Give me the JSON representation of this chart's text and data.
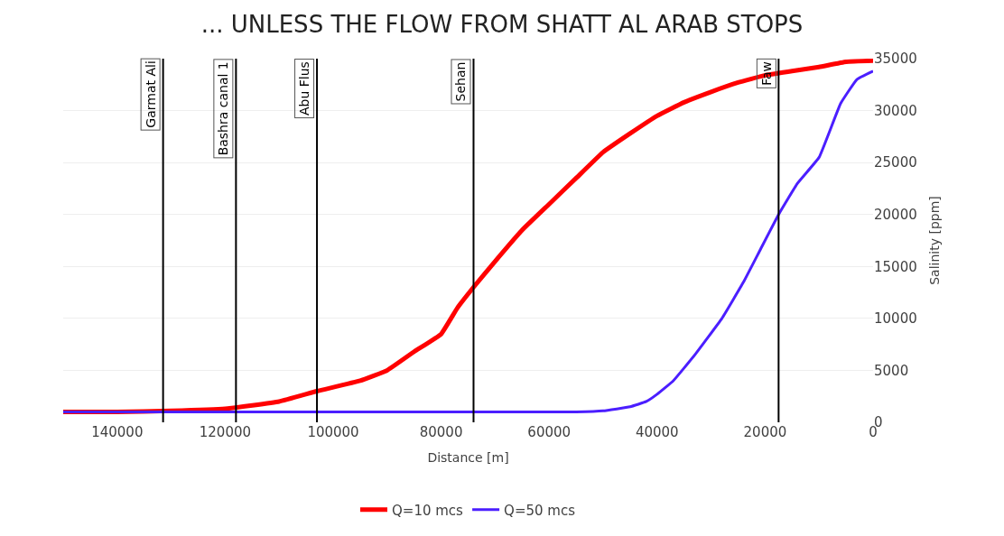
{
  "chart_data": {
    "type": "line",
    "title": "... UNLESS THE FLOW FROM SHATT AL ARAB STOPS",
    "xlabel": "Distance [m]",
    "ylabel": "Salinity [ppm]",
    "xlim": [
      150000,
      0
    ],
    "xticks": [
      140000,
      120000,
      100000,
      80000,
      60000,
      40000,
      20000,
      0
    ],
    "ylim": [
      0,
      35000
    ],
    "yticks": [
      0,
      5000,
      10000,
      15000,
      20000,
      25000,
      30000,
      35000
    ],
    "grid": "y",
    "legend": "bottom",
    "marker": "none",
    "line_style": "solid",
    "series": [
      {
        "name": "Q=10 mcs",
        "color": "#ff0000",
        "x": [
          150000,
          140000,
          130000,
          120000,
          110000,
          103000,
          95000,
          90000,
          85000,
          80000,
          77000,
          74000,
          70000,
          65000,
          60000,
          55000,
          50000,
          45000,
          40000,
          35000,
          30000,
          25000,
          20000,
          15000,
          10000,
          5000,
          0
        ],
        "values": [
          1000,
          1000,
          1100,
          1300,
          2000,
          3000,
          4000,
          5000,
          6800,
          8500,
          11000,
          13000,
          15500,
          18500,
          21000,
          23500,
          26000,
          27800,
          29500,
          30800,
          31800,
          32700,
          33400,
          33800,
          34200,
          34700,
          34800
        ]
      },
      {
        "name": "Q=50 mcs",
        "color": "#4b1eff",
        "x": [
          150000,
          100000,
          60000,
          55000,
          50000,
          45000,
          42000,
          40000,
          37000,
          33000,
          28000,
          24000,
          21000,
          17500,
          14000,
          10000,
          6000,
          3000,
          0
        ],
        "values": [
          1000,
          1000,
          1000,
          1000,
          1100,
          1500,
          2000,
          2700,
          4000,
          6500,
          10000,
          13500,
          16500,
          20000,
          23000,
          25500,
          30700,
          33000,
          33800
        ]
      }
    ],
    "ref_lines": [
      {
        "axis": "x",
        "value": 131500,
        "label": "Garmat Ali",
        "color": "#000000"
      },
      {
        "axis": "x",
        "value": 118000,
        "label": "Bashra canal 1",
        "color": "#000000"
      },
      {
        "axis": "x",
        "value": 103000,
        "label": "Abu Flus",
        "color": "#000000"
      },
      {
        "axis": "x",
        "value": 74000,
        "label": "Sehan",
        "color": "#000000"
      },
      {
        "axis": "x",
        "value": 17500,
        "label": "Faw",
        "color": "#000000"
      }
    ]
  }
}
